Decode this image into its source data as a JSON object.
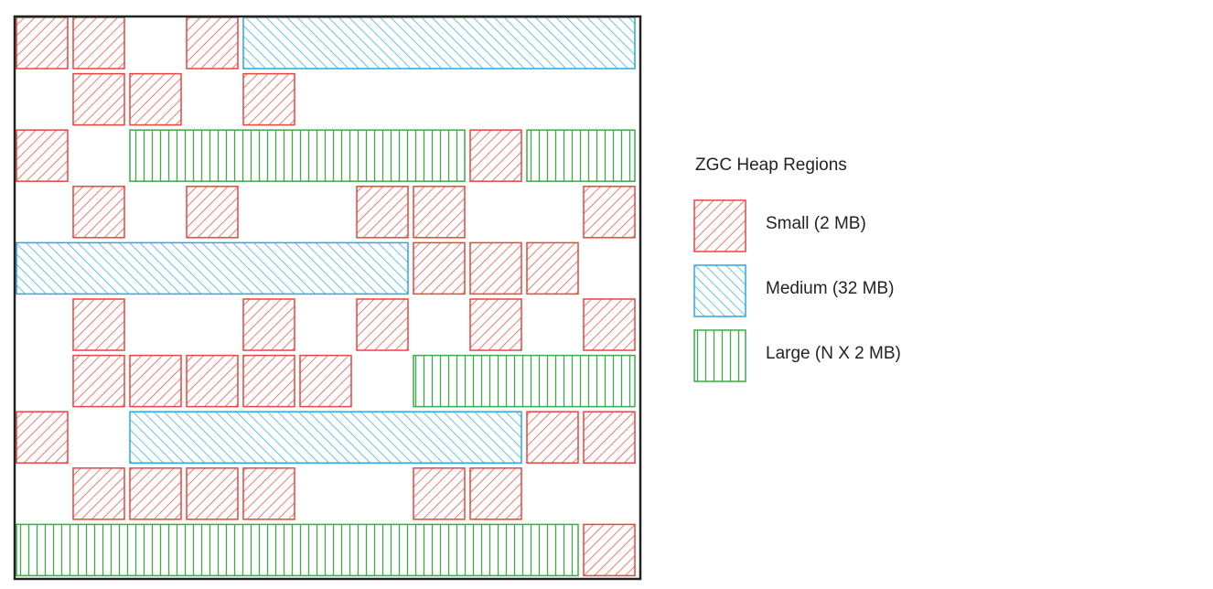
{
  "legend": {
    "title": "ZGC Heap Regions",
    "items": [
      {
        "key": "small",
        "label": "Small (2 MB)",
        "color": "#e8453c",
        "pattern": "diagonal-forward"
      },
      {
        "key": "medium",
        "label": "Medium (32 MB)",
        "color": "#29a8e0",
        "pattern": "diagonal-back"
      },
      {
        "key": "large",
        "label": "Large (N X 2 MB)",
        "color": "#3daa48",
        "pattern": "vertical"
      }
    ]
  },
  "heap": {
    "border_color": "#222222",
    "regions": [
      {
        "type": "small",
        "row": 0,
        "col": 0
      },
      {
        "type": "small",
        "row": 0,
        "col": 1
      },
      {
        "type": "small",
        "row": 0,
        "col": 3
      },
      {
        "type": "medium",
        "row": 0,
        "col": 4,
        "span": 7
      },
      {
        "type": "small",
        "row": 1,
        "col": 1
      },
      {
        "type": "small",
        "row": 1,
        "col": 2
      },
      {
        "type": "small",
        "row": 1,
        "col": 4
      },
      {
        "type": "small",
        "row": 2,
        "col": 0
      },
      {
        "type": "large",
        "row": 2,
        "col": 2,
        "span": 6
      },
      {
        "type": "small",
        "row": 2,
        "col": 8
      },
      {
        "type": "large",
        "row": 2,
        "col": 9,
        "span": 2
      },
      {
        "type": "small",
        "row": 3,
        "col": 1
      },
      {
        "type": "small",
        "row": 3,
        "col": 3
      },
      {
        "type": "small",
        "row": 3,
        "col": 6
      },
      {
        "type": "small",
        "row": 3,
        "col": 7
      },
      {
        "type": "small",
        "row": 3,
        "col": 10
      },
      {
        "type": "medium",
        "row": 4,
        "col": 0,
        "span": 7
      },
      {
        "type": "small",
        "row": 4,
        "col": 7
      },
      {
        "type": "small",
        "row": 4,
        "col": 8
      },
      {
        "type": "small",
        "row": 4,
        "col": 9
      },
      {
        "type": "small",
        "row": 5,
        "col": 1
      },
      {
        "type": "small",
        "row": 5,
        "col": 4
      },
      {
        "type": "small",
        "row": 5,
        "col": 6
      },
      {
        "type": "small",
        "row": 5,
        "col": 8
      },
      {
        "type": "small",
        "row": 5,
        "col": 10
      },
      {
        "type": "small",
        "row": 6,
        "col": 1
      },
      {
        "type": "small",
        "row": 6,
        "col": 2
      },
      {
        "type": "small",
        "row": 6,
        "col": 3
      },
      {
        "type": "small",
        "row": 6,
        "col": 4
      },
      {
        "type": "small",
        "row": 6,
        "col": 5
      },
      {
        "type": "large",
        "row": 6,
        "col": 7,
        "span": 4
      },
      {
        "type": "small",
        "row": 7,
        "col": 0
      },
      {
        "type": "medium",
        "row": 7,
        "col": 2,
        "span": 7
      },
      {
        "type": "small",
        "row": 7,
        "col": 9
      },
      {
        "type": "small",
        "row": 7,
        "col": 10
      },
      {
        "type": "small",
        "row": 8,
        "col": 1
      },
      {
        "type": "small",
        "row": 8,
        "col": 2
      },
      {
        "type": "small",
        "row": 8,
        "col": 3
      },
      {
        "type": "small",
        "row": 8,
        "col": 4
      },
      {
        "type": "small",
        "row": 8,
        "col": 7
      },
      {
        "type": "small",
        "row": 8,
        "col": 8
      },
      {
        "type": "large",
        "row": 9,
        "col": 0,
        "span": 10
      },
      {
        "type": "small",
        "row": 9,
        "col": 10
      }
    ]
  }
}
